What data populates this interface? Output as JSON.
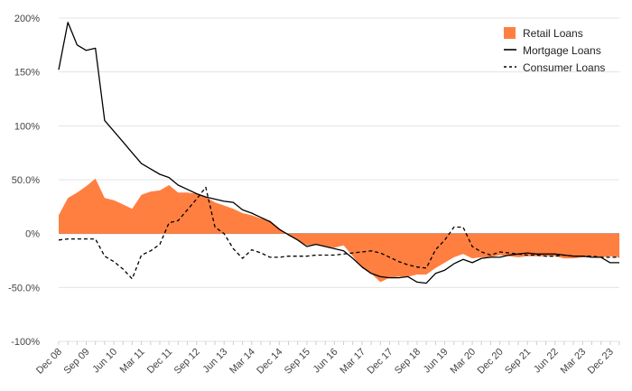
{
  "chart_data": {
    "type": "area",
    "title": "",
    "xlabel": "",
    "ylabel": "",
    "ylim": [
      -100,
      200
    ],
    "yticks": [
      200,
      150,
      100,
      50,
      0,
      -50,
      -100
    ],
    "ytick_labels": [
      "200%",
      "150%",
      "100%",
      "50.0%",
      "0%",
      "-50.0%",
      "-100%"
    ],
    "grid": "horizontal",
    "legend_position": "top-right",
    "x_start": "Dec 08",
    "x_frequency": "quarterly",
    "xtick_labels": [
      "Dec 08",
      "Sep 09",
      "Jun 10",
      "Mar 11",
      "Dec 11",
      "Sep 12",
      "Jun 13",
      "Mar 14",
      "Dec 14",
      "Sep 15",
      "Jun 16",
      "Mar 17",
      "Dec 17",
      "Sep 18",
      "Jun 19",
      "Mar 20",
      "Dec 20",
      "Sep 21",
      "Jun 22",
      "Mar 23",
      "Dec 23"
    ],
    "series": [
      {
        "name": "Retail Loans",
        "type": "area",
        "color": "#ff7f41",
        "values": [
          17,
          33,
          38,
          44,
          51,
          33,
          31,
          27,
          23,
          36,
          39,
          40,
          45,
          38,
          38,
          37,
          34,
          29,
          26,
          23,
          19,
          17,
          14,
          12,
          5,
          -2,
          -6,
          -11,
          -10,
          -12,
          -13,
          -11,
          -21,
          -32,
          -37,
          -45,
          -41,
          -40,
          -40,
          -38,
          -38,
          -32,
          -27,
          -22,
          -19,
          -23,
          -22,
          -22,
          -20,
          -21,
          -22,
          -21,
          -21,
          -21,
          -21,
          -23,
          -23,
          -22,
          -21,
          -22,
          -21,
          -22
        ]
      },
      {
        "name": "Mortgage Loans",
        "type": "line",
        "color": "#000000",
        "dash": "solid",
        "values": [
          152,
          196,
          175,
          170,
          172,
          105,
          95,
          85,
          75,
          65,
          60,
          55,
          52,
          45,
          41,
          37,
          34,
          32,
          30,
          29,
          22,
          19,
          15,
          11,
          4,
          -1,
          -6,
          -12,
          -10,
          -12,
          -14,
          -16,
          -23,
          -31,
          -37,
          -40,
          -41,
          -41,
          -40,
          -45,
          -46,
          -37,
          -34,
          -28,
          -24,
          -27,
          -23,
          -22,
          -22,
          -20,
          -19,
          -18,
          -19,
          -19,
          -19,
          -20,
          -21,
          -21,
          -22,
          -22,
          -27,
          -27
        ]
      },
      {
        "name": "Consumer Loans",
        "type": "line",
        "color": "#000000",
        "dash": "dashed",
        "values": [
          -6,
          -5,
          -5,
          -5,
          -5,
          -21,
          -26,
          -33,
          -42,
          -20,
          -16,
          -10,
          10,
          12,
          22,
          32,
          43,
          6,
          0,
          -14,
          -23,
          -15,
          -18,
          -22,
          -22,
          -21,
          -21,
          -21,
          -20,
          -20,
          -20,
          -19,
          -18,
          -17,
          -16,
          -18,
          -22,
          -26,
          -29,
          -31,
          -32,
          -15,
          -6,
          6,
          6,
          -12,
          -17,
          -20,
          -17,
          -18,
          -19,
          -20,
          -20,
          -21,
          -21,
          -20,
          -21,
          -21,
          -21,
          -22,
          -22,
          -22
        ]
      }
    ]
  }
}
